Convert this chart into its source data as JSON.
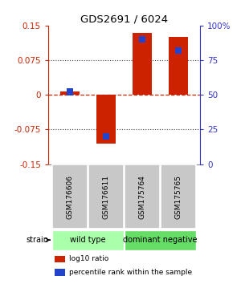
{
  "title": "GDS2691 / 6024",
  "samples": [
    "GSM176606",
    "GSM176611",
    "GSM175764",
    "GSM175765"
  ],
  "log10_ratio": [
    0.008,
    -0.105,
    0.135,
    0.125
  ],
  "percentile_rank": [
    52,
    20,
    90,
    82
  ],
  "ylim_left": [
    -0.15,
    0.15
  ],
  "ylim_right": [
    0,
    100
  ],
  "yticks_left": [
    -0.15,
    -0.075,
    0,
    0.075,
    0.15
  ],
  "yticks_right": [
    0,
    25,
    50,
    75,
    100
  ],
  "ytick_labels_left": [
    "-0.15",
    "-0.075",
    "0",
    "0.075",
    "0.15"
  ],
  "ytick_labels_right": [
    "0",
    "25",
    "50",
    "75",
    "100%"
  ],
  "groups": [
    {
      "label": "wild type",
      "color": "#aaffaa"
    },
    {
      "label": "dominant negative",
      "color": "#66dd66"
    }
  ],
  "bar_color_red": "#cc2200",
  "bar_color_blue": "#2244cc",
  "bar_width": 0.55,
  "blue_bar_width": 0.18,
  "legend_red_label": "log10 ratio",
  "legend_blue_label": "percentile rank within the sample",
  "strain_label": "strain",
  "left_axis_color": "#cc2200",
  "right_axis_color": "#3333cc"
}
